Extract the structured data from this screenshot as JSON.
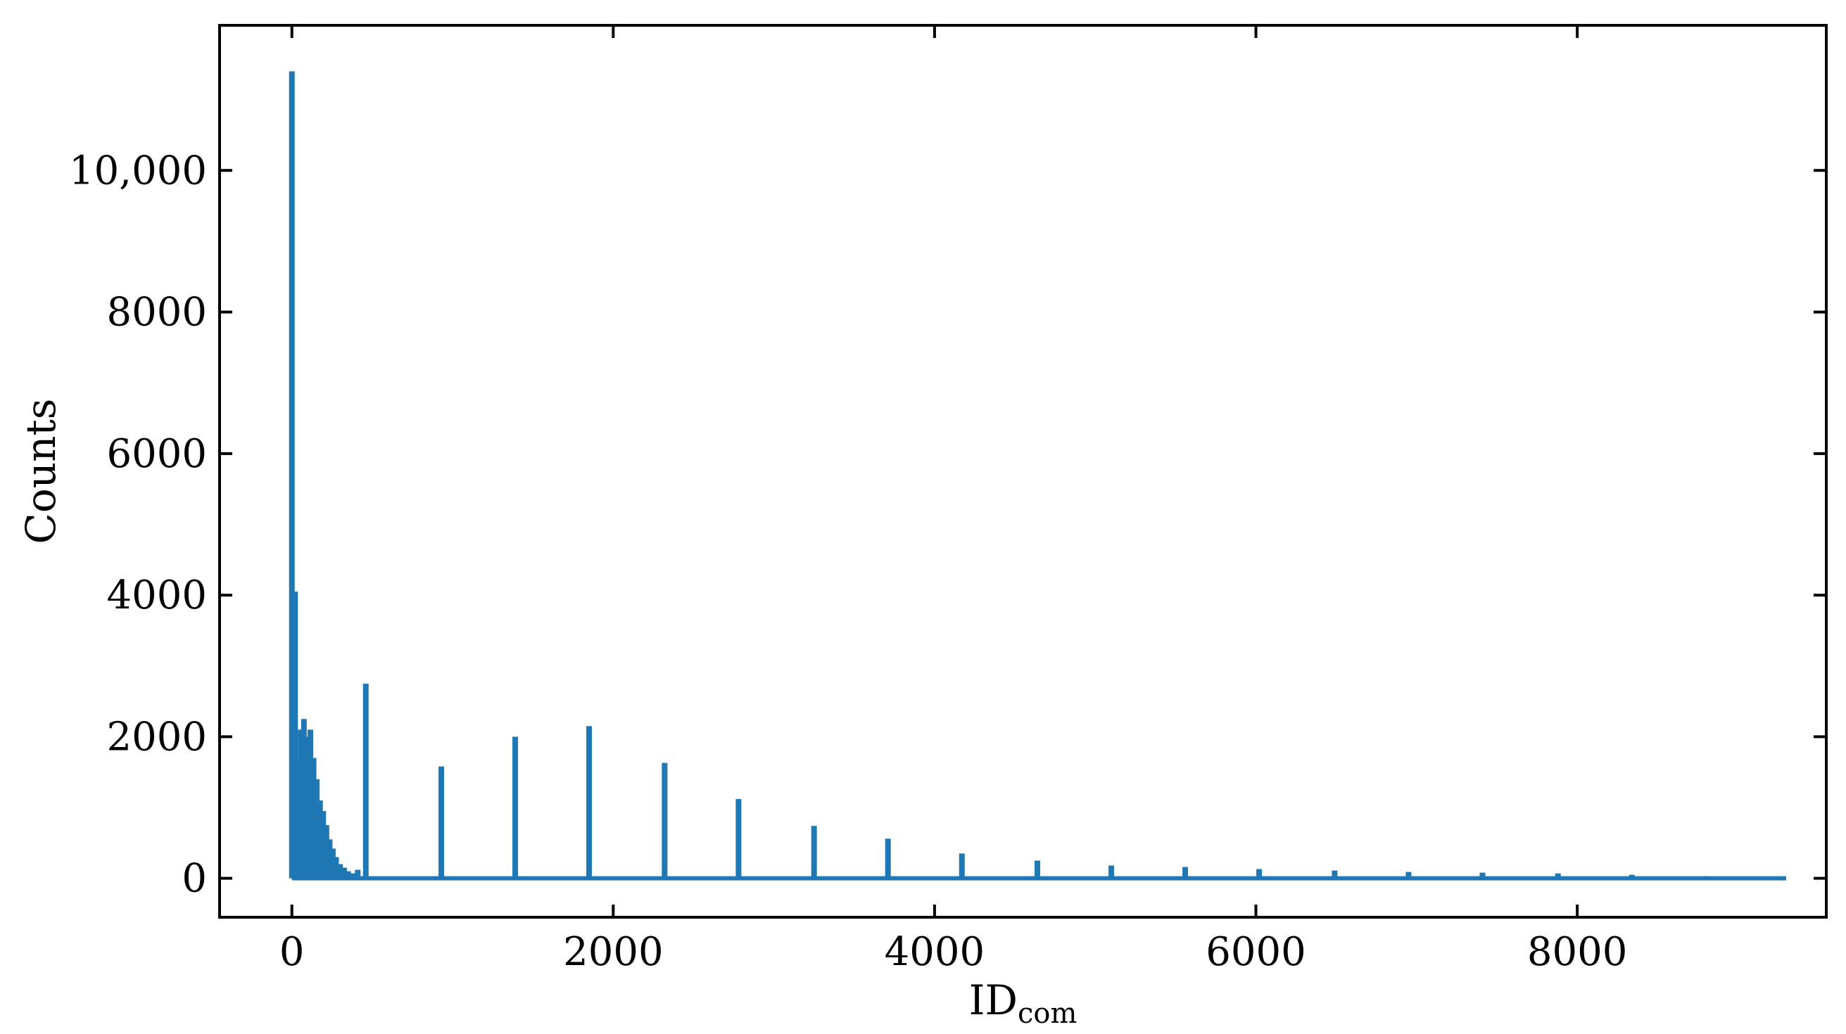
{
  "chart_data": {
    "type": "bar",
    "title": "",
    "xlabel": "ID",
    "xlabel_subscript": "com",
    "ylabel": "Counts",
    "xlim": [
      -450,
      9550
    ],
    "ylim": [
      -550,
      12050
    ],
    "x_ticks": [
      0,
      2000,
      4000,
      6000,
      8000
    ],
    "x_tick_labels": [
      "0",
      "2000",
      "4000",
      "6000",
      "8000"
    ],
    "y_ticks": [
      0,
      2000,
      4000,
      6000,
      8000,
      10000
    ],
    "y_tick_labels": [
      "0",
      "2000",
      "4000",
      "6000",
      "8000",
      "10,000"
    ],
    "grid": false,
    "color": "#1f77b4",
    "baseline_x_range": [
      0,
      9300
    ],
    "bars": [
      {
        "x": 0,
        "y": 11400
      },
      {
        "x": 20,
        "y": 4050
      },
      {
        "x": 35,
        "y": 1700
      },
      {
        "x": 55,
        "y": 2100
      },
      {
        "x": 75,
        "y": 2250
      },
      {
        "x": 95,
        "y": 2000
      },
      {
        "x": 115,
        "y": 2100
      },
      {
        "x": 135,
        "y": 1700
      },
      {
        "x": 155,
        "y": 1400
      },
      {
        "x": 175,
        "y": 1100
      },
      {
        "x": 195,
        "y": 950
      },
      {
        "x": 215,
        "y": 750
      },
      {
        "x": 235,
        "y": 550
      },
      {
        "x": 255,
        "y": 420
      },
      {
        "x": 275,
        "y": 300
      },
      {
        "x": 300,
        "y": 200
      },
      {
        "x": 325,
        "y": 150
      },
      {
        "x": 350,
        "y": 100
      },
      {
        "x": 380,
        "y": 70
      },
      {
        "x": 410,
        "y": 120
      },
      {
        "x": 460,
        "y": 2750
      },
      {
        "x": 930,
        "y": 1580
      },
      {
        "x": 1390,
        "y": 2000
      },
      {
        "x": 1850,
        "y": 2150
      },
      {
        "x": 2320,
        "y": 1630
      },
      {
        "x": 2780,
        "y": 1120
      },
      {
        "x": 3250,
        "y": 740
      },
      {
        "x": 3710,
        "y": 560
      },
      {
        "x": 4170,
        "y": 350
      },
      {
        "x": 4640,
        "y": 250
      },
      {
        "x": 5100,
        "y": 180
      },
      {
        "x": 5560,
        "y": 160
      },
      {
        "x": 6020,
        "y": 130
      },
      {
        "x": 6490,
        "y": 110
      },
      {
        "x": 6950,
        "y": 90
      },
      {
        "x": 7410,
        "y": 80
      },
      {
        "x": 7880,
        "y": 70
      },
      {
        "x": 8340,
        "y": 50
      },
      {
        "x": 8800,
        "y": 30
      }
    ]
  }
}
